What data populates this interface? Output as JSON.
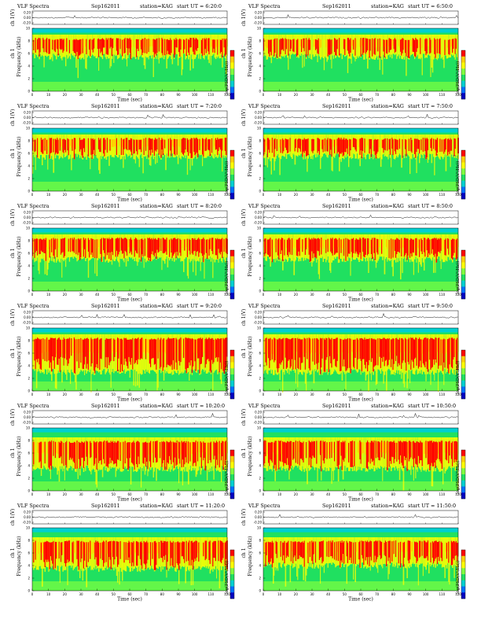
{
  "chart_data": {
    "type": "heatmap",
    "layout": "6 rows x 2 columns of spectrogram panels",
    "common": {
      "title_prefix": "VLF Spectra",
      "date": "Sep162011",
      "station_label": "station=KAG",
      "ut_prefix": "start UT =",
      "top_ylabel": "ch 1(V)",
      "top_yticks": [
        "0.20",
        "0.00",
        "-0.20"
      ],
      "top_ylim": [
        -0.2,
        0.2
      ],
      "spec_ylabel_channel": "ch 1",
      "spec_ylabel": "Frequency (kHz)",
      "spec_yticks": [
        "0",
        "2",
        "4",
        "6",
        "8",
        "10"
      ],
      "spec_ylim": [
        0,
        10
      ],
      "xlabel": "Time (sec)",
      "xticks": [
        "0",
        "10",
        "20",
        "30",
        "40",
        "50",
        "60",
        "70",
        "80",
        "90",
        "100",
        "110",
        "120"
      ],
      "xlim": [
        0,
        120
      ],
      "colorbar_label": "log(PSD(V²/Hz))",
      "colorbar_colors": [
        "#ff0000",
        "#ffd000",
        "#ffff00",
        "#80ff40",
        "#20e060",
        "#00d0d0",
        "#0070ff",
        "#0000c0"
      ]
    },
    "panels": [
      {
        "start_ut": "6:20:0",
        "bright_band_khz": [
          5.5,
          8.5
        ],
        "intensity": 0.55
      },
      {
        "start_ut": "6:50:0",
        "bright_band_khz": [
          5.5,
          8.5
        ],
        "intensity": 0.55
      },
      {
        "start_ut": "7:20:0",
        "bright_band_khz": [
          5.5,
          8.5
        ],
        "intensity": 0.6
      },
      {
        "start_ut": "7:50:0",
        "bright_band_khz": [
          5.5,
          8.5
        ],
        "intensity": 0.6
      },
      {
        "start_ut": "8:20:0",
        "bright_band_khz": [
          5.0,
          8.5
        ],
        "intensity": 0.65
      },
      {
        "start_ut": "8:50:0",
        "bright_band_khz": [
          5.0,
          8.5
        ],
        "intensity": 0.65
      },
      {
        "start_ut": "9:20:0",
        "bright_band_khz": [
          3.0,
          8.5
        ],
        "intensity": 0.75
      },
      {
        "start_ut": "9:50:0",
        "bright_band_khz": [
          3.0,
          8.5
        ],
        "intensity": 0.75
      },
      {
        "start_ut": "10:20:0",
        "bright_band_khz": [
          3.5,
          8.0
        ],
        "intensity": 0.7
      },
      {
        "start_ut": "10:50:0",
        "bright_band_khz": [
          3.5,
          8.0
        ],
        "intensity": 0.7
      },
      {
        "start_ut": "11:20:0",
        "bright_band_khz": [
          3.5,
          8.0
        ],
        "intensity": 0.65
      },
      {
        "start_ut": "11:50:0",
        "bright_band_khz": [
          4.0,
          8.0
        ],
        "intensity": 0.6
      }
    ]
  }
}
